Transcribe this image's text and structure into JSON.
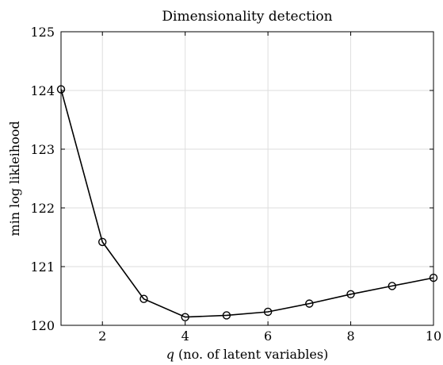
{
  "chart_data": {
    "type": "line",
    "title": "Dimensionality detection",
    "xlabel_var": "q",
    "xlabel_rest": " (no. of latent variables)",
    "ylabel": "min log likleihood",
    "x": [
      1,
      2,
      3,
      4,
      5,
      6,
      7,
      8,
      9,
      10
    ],
    "values": [
      124.02,
      121.42,
      120.45,
      120.14,
      120.17,
      120.23,
      120.37,
      120.53,
      120.67,
      120.81
    ],
    "xlim": [
      1,
      10
    ],
    "ylim": [
      120,
      125
    ],
    "xticks": [
      2,
      4,
      6,
      8,
      10
    ],
    "yticks": [
      120,
      121,
      122,
      123,
      124,
      125
    ],
    "grid": true,
    "line_color": "#000000",
    "marker": "circle-open"
  }
}
